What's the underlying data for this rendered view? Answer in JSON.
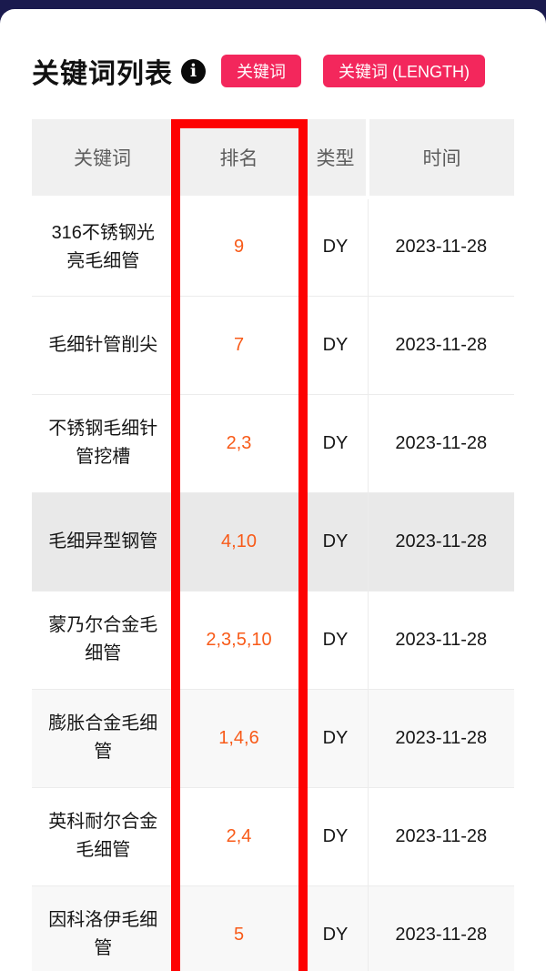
{
  "header": {
    "title": "关键词列表",
    "info_icon_glyph": "i",
    "buttons": [
      {
        "label": "关键词"
      },
      {
        "label": "关键词 (LENGTH)"
      }
    ]
  },
  "colors": {
    "topbar_navy": "#1a1a4e",
    "button_accent": "#f3275c",
    "highlight_box_red": "#fd0202",
    "rank_text_orange": "#f85a18",
    "header_cell_gray": "#f0f0f0",
    "row_shade_light": "#f8f8f8",
    "row_shade_dark": "#e9e9e9"
  },
  "table": {
    "columns": [
      "关键词",
      "排名",
      "类型",
      "时间"
    ],
    "highlighted_column": "排名",
    "rows": [
      {
        "keyword": "316不锈钢光亮毛细管",
        "rank": "9",
        "type": "DY",
        "date": "2023-11-28",
        "shade": "none"
      },
      {
        "keyword": "毛细针管削尖",
        "rank": "7",
        "type": "DY",
        "date": "2023-11-28",
        "shade": "none"
      },
      {
        "keyword": "不锈钢毛细针管挖槽",
        "rank": "2,3",
        "type": "DY",
        "date": "2023-11-28",
        "shade": "none"
      },
      {
        "keyword": "毛细异型钢管",
        "rank": "4,10",
        "type": "DY",
        "date": "2023-11-28",
        "shade": "dark"
      },
      {
        "keyword": "蒙乃尔合金毛细管",
        "rank": "2,3,5,10",
        "type": "DY",
        "date": "2023-11-28",
        "shade": "none"
      },
      {
        "keyword": "膨胀合金毛细管",
        "rank": "1,4,6",
        "type": "DY",
        "date": "2023-11-28",
        "shade": "light"
      },
      {
        "keyword": "英科耐尔合金毛细管",
        "rank": "2,4",
        "type": "DY",
        "date": "2023-11-28",
        "shade": "none"
      },
      {
        "keyword": "因科洛伊毛细管",
        "rank": "5",
        "type": "DY",
        "date": "2023-11-28",
        "shade": "light"
      }
    ]
  }
}
